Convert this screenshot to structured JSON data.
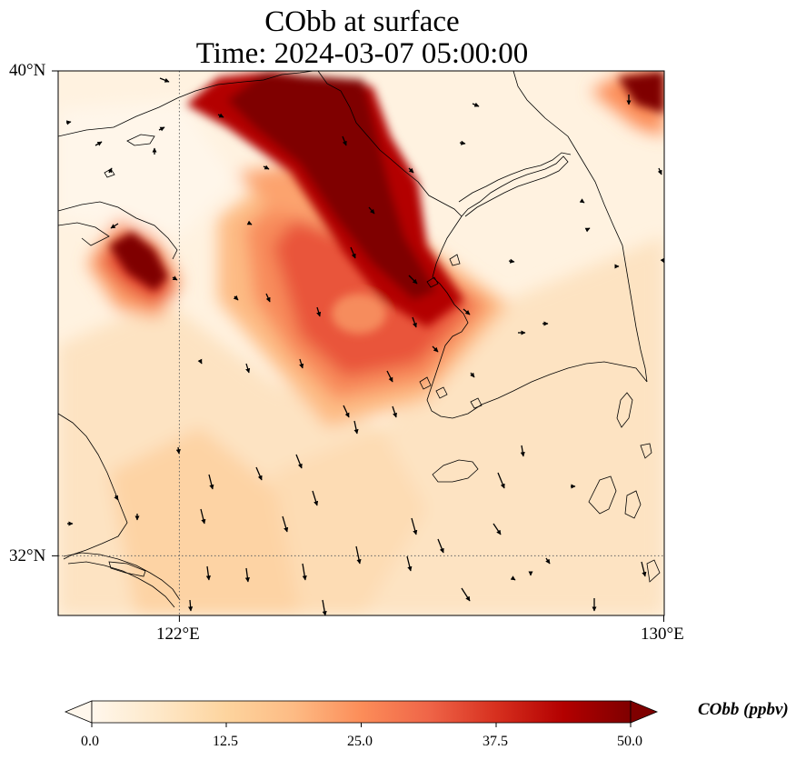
{
  "title": {
    "line1": "CObb at surface",
    "line2": "Time: 2024-03-07 05:00:00"
  },
  "map": {
    "lon_range": [
      118,
      130
    ],
    "lat_range": [
      31,
      40
    ],
    "lon_ticks": [
      {
        "value": 122,
        "label": "122°E"
      },
      {
        "value": 130,
        "label": "130°E"
      }
    ],
    "lat_ticks": [
      {
        "value": 40,
        "label": "40°N"
      },
      {
        "value": 32,
        "label": "32°N"
      }
    ],
    "gridlines": "dotted at 122°E and 32°N",
    "variable": "CObb",
    "colormap": "OrRd",
    "wind_vectors": "black arrows, mostly southward to south-southeastward"
  },
  "colorbar": {
    "min": 0.0,
    "max": 50.0,
    "extend": "both",
    "ticks": [
      "0.0",
      "12.5",
      "25.0",
      "37.5",
      "50.0"
    ],
    "label": "CObb (ppbv)",
    "colors": [
      "#fff7ec",
      "#fee8c8",
      "#fdd49e",
      "#fdbb84",
      "#fc8d59",
      "#ef6548",
      "#d7301f",
      "#b30000",
      "#7f0000"
    ]
  }
}
